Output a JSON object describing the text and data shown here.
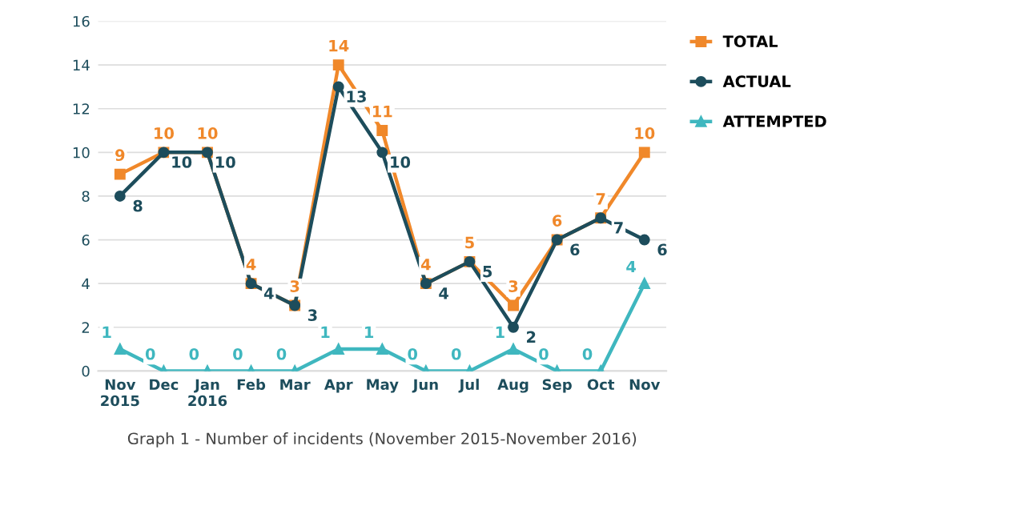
{
  "chart_data": {
    "type": "line",
    "categories": [
      "Nov\n2015",
      "Dec",
      "Jan\n2016",
      "Feb",
      "Mar",
      "Apr",
      "May",
      "Jun",
      "Jul",
      "Aug",
      "Sep",
      "Oct",
      "Nov"
    ],
    "series": [
      {
        "name": "TOTAL",
        "color": "#f0882a",
        "marker": "square",
        "values": [
          9,
          10,
          10,
          4,
          3,
          14,
          11,
          4,
          5,
          3,
          6,
          7,
          10
        ]
      },
      {
        "name": "ACTUAL",
        "color": "#1d4d5c",
        "marker": "circle",
        "values": [
          8,
          10,
          10,
          4,
          3,
          13,
          10,
          4,
          5,
          2,
          6,
          7,
          6
        ]
      },
      {
        "name": "ATTEMPTED",
        "color": "#3fb7bf",
        "marker": "triangle",
        "values": [
          1,
          0,
          0,
          0,
          0,
          1,
          1,
          0,
          0,
          1,
          0,
          0,
          4
        ]
      }
    ],
    "ylim": [
      0,
      16
    ],
    "yticks": [
      0,
      2,
      4,
      6,
      8,
      10,
      12,
      14,
      16
    ],
    "grid": "y",
    "legend": "top right",
    "data_labels": true,
    "line_style": "solid",
    "annotations": [
      "Graph 1 - Number of incidents (November 2015-November 2016)"
    ]
  }
}
